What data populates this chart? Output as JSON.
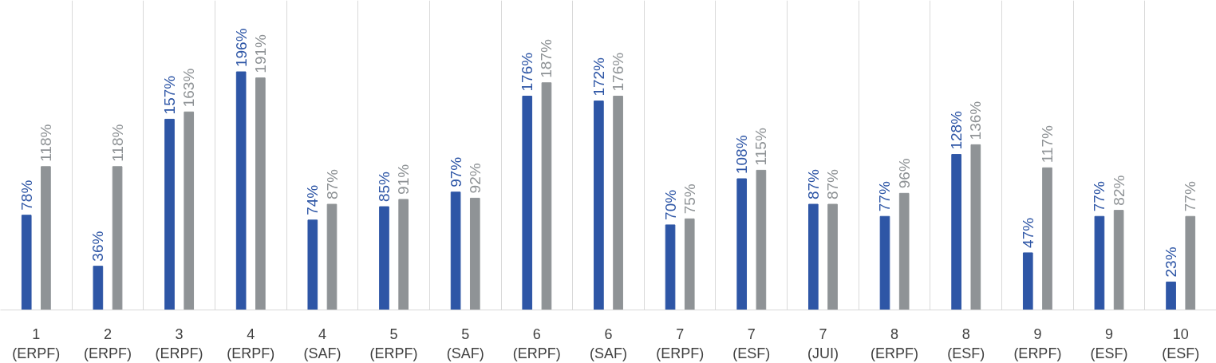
{
  "chart_data": {
    "type": "bar",
    "categories": [
      "1\n(ERPF)",
      "2\n(ERPF)",
      "3\n(ERPF)",
      "4\n(ERPF)",
      "4\n(SAF)",
      "5\n(ERPF)",
      "5\n(SAF)",
      "6\n(ERPF)",
      "6\n(SAF)",
      "7\n(ERPF)",
      "7\n(ESF)",
      "7\n(JUI)",
      "8\n(ERPF)",
      "8\n(ESF)",
      "9\n(ERPF)",
      "9\n(ESF)",
      "10\n(ESF)"
    ],
    "series": [
      {
        "color": "#2e56a6",
        "values": [
          78,
          36,
          157,
          196,
          74,
          85,
          97,
          176,
          172,
          70,
          108,
          87,
          77,
          128,
          47,
          77,
          23
        ],
        "value_labels": [
          "78%",
          "36%",
          "157%",
          "196%",
          "74%",
          "85%",
          "97%",
          "176%",
          "172%",
          "70%",
          "108%",
          "87%",
          "77%",
          "128%",
          "47%",
          "77%",
          "23%"
        ]
      },
      {
        "color": "#8f9396",
        "values": [
          118,
          118,
          163,
          191,
          87,
          91,
          92,
          187,
          176,
          75,
          115,
          87,
          96,
          136,
          117,
          82,
          77
        ],
        "value_labels": [
          "118%",
          "118%",
          "163%",
          "191%",
          "87%",
          "91%",
          "92%",
          "187%",
          "176%",
          "75%",
          "115%",
          "87%",
          "96%",
          "136%",
          "117%",
          "82%",
          "77%"
        ]
      }
    ],
    "grid": "x"
  }
}
